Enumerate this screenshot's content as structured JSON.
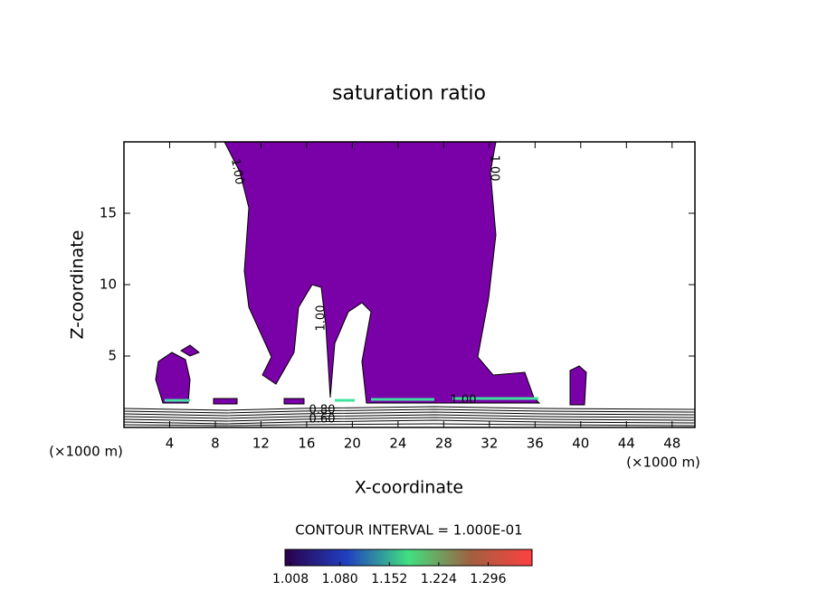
{
  "chart_data": {
    "type": "contour",
    "title": "saturation ratio",
    "xlabel": "X-coordinate",
    "ylabel": "Z-coordinate",
    "x_unit_left": "(×1000 m)",
    "x_unit_right": "(×1000 m)",
    "xlim": [
      0,
      50
    ],
    "ylim": [
      0,
      20
    ],
    "xticks": [
      4,
      8,
      12,
      16,
      20,
      24,
      28,
      32,
      36,
      40,
      44,
      48
    ],
    "yticks": [
      5,
      10,
      15
    ],
    "contour_labels": [
      "1.00",
      "1.00",
      "1.00",
      "0.80",
      "0.60",
      "1.00"
    ],
    "colorbar_title": "CONTOUR INTERVAL = 1.000E-01",
    "clim": [
      1.0,
      1.36
    ],
    "cticks": [
      {
        "value": 1.008,
        "label": "1.008"
      },
      {
        "value": 1.08,
        "label": "1.080"
      },
      {
        "value": 1.152,
        "label": "1.152"
      },
      {
        "value": 1.224,
        "label": "1.224"
      },
      {
        "value": 1.296,
        "label": "1.296"
      }
    ]
  }
}
